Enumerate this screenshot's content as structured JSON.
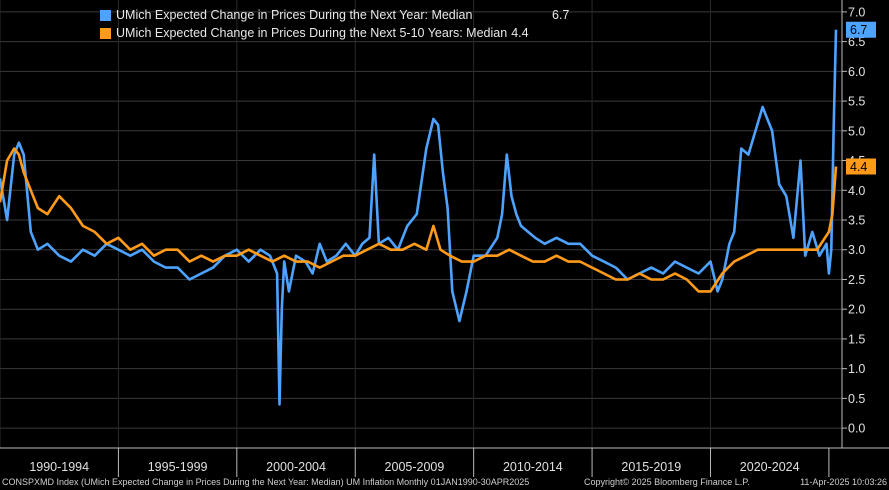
{
  "chart_data": {
    "type": "line",
    "x_range": [
      1990.0,
      2025.3
    ],
    "ylim": [
      -0.2,
      7.2
    ],
    "y_ticks": [
      "0.0",
      "0.5",
      "1.0",
      "1.5",
      "2.0",
      "2.5",
      "3.0",
      "3.5",
      "4.0",
      "4.5",
      "5.0",
      "5.5",
      "6.0",
      "6.5",
      "7.0"
    ],
    "y_tick_values": [
      0,
      0.5,
      1,
      1.5,
      2,
      2.5,
      3,
      3.5,
      4,
      4.5,
      5,
      5.5,
      6,
      6.5,
      7
    ],
    "x_periods": [
      "1990-1994",
      "1995-1999",
      "2000-2004",
      "2005-2009",
      "2010-2014",
      "2015-2019",
      "2020-2024"
    ],
    "grid": true,
    "legend_position": "top-left",
    "series": [
      {
        "name": "UMich Expected Change in Prices During the Next Year: Median",
        "last_value": "6.7",
        "color": "#4da3ff",
        "x": [
          1990.0,
          1990.3,
          1990.6,
          1990.8,
          1991.0,
          1991.3,
          1991.6,
          1992.0,
          1992.5,
          1993.0,
          1993.5,
          1994.0,
          1994.5,
          1995.0,
          1995.5,
          1996.0,
          1996.5,
          1997.0,
          1997.5,
          1998.0,
          1998.5,
          1999.0,
          1999.5,
          2000.0,
          2000.5,
          2001.0,
          2001.4,
          2001.7,
          2001.8,
          2001.9,
          2002.0,
          2002.2,
          2002.5,
          2002.9,
          2003.2,
          2003.5,
          2003.8,
          2004.2,
          2004.6,
          2005.0,
          2005.3,
          2005.6,
          2005.8,
          2006.0,
          2006.4,
          2006.8,
          2007.2,
          2007.6,
          2008.0,
          2008.3,
          2008.5,
          2008.7,
          2008.9,
          2009.1,
          2009.4,
          2009.7,
          2010.0,
          2010.5,
          2011.0,
          2011.2,
          2011.4,
          2011.6,
          2011.8,
          2012.0,
          2012.3,
          2012.6,
          2013.0,
          2013.5,
          2014.0,
          2014.5,
          2015.0,
          2015.5,
          2016.0,
          2016.5,
          2017.0,
          2017.5,
          2018.0,
          2018.5,
          2019.0,
          2019.5,
          2020.0,
          2020.3,
          2020.5,
          2020.8,
          2021.0,
          2021.3,
          2021.6,
          2021.9,
          2022.2,
          2022.4,
          2022.6,
          2022.9,
          2023.2,
          2023.5,
          2023.8,
          2024.0,
          2024.3,
          2024.6,
          2024.9,
          2025.0,
          2025.1,
          2025.2,
          2025.3
        ],
        "values": [
          4.2,
          3.5,
          4.6,
          4.8,
          4.6,
          3.3,
          3.0,
          3.1,
          2.9,
          2.8,
          3.0,
          2.9,
          3.1,
          3.0,
          2.9,
          3.0,
          2.8,
          2.7,
          2.7,
          2.5,
          2.6,
          2.7,
          2.9,
          3.0,
          2.8,
          3.0,
          2.9,
          2.6,
          0.4,
          2.0,
          2.8,
          2.3,
          2.9,
          2.8,
          2.6,
          3.1,
          2.8,
          2.9,
          3.1,
          2.9,
          3.1,
          3.2,
          4.6,
          3.1,
          3.2,
          3.0,
          3.4,
          3.6,
          4.7,
          5.2,
          5.1,
          4.3,
          3.7,
          2.3,
          1.8,
          2.3,
          2.9,
          2.9,
          3.2,
          3.6,
          4.6,
          3.9,
          3.6,
          3.4,
          3.3,
          3.2,
          3.1,
          3.2,
          3.1,
          3.1,
          2.9,
          2.8,
          2.7,
          2.5,
          2.6,
          2.7,
          2.6,
          2.8,
          2.7,
          2.6,
          2.8,
          2.3,
          2.5,
          3.1,
          3.3,
          4.7,
          4.6,
          5.0,
          5.4,
          5.2,
          5.0,
          4.1,
          3.9,
          3.2,
          4.5,
          2.9,
          3.3,
          2.9,
          3.1,
          2.6,
          3.0,
          5.0,
          6.7
        ]
      },
      {
        "name": "UMich Expected Change in Prices During the Next 5-10 Years: Median",
        "last_value": "4.4",
        "color": "#ff9a1a",
        "x": [
          1990.0,
          1990.3,
          1990.6,
          1990.8,
          1991.0,
          1991.3,
          1991.6,
          1992.0,
          1992.5,
          1993.0,
          1993.5,
          1994.0,
          1994.5,
          1995.0,
          1995.5,
          1996.0,
          1996.5,
          1997.0,
          1997.5,
          1998.0,
          1998.5,
          1999.0,
          1999.5,
          2000.0,
          2000.5,
          2001.0,
          2001.5,
          2002.0,
          2002.5,
          2003.0,
          2003.5,
          2004.0,
          2004.5,
          2005.0,
          2005.5,
          2006.0,
          2006.5,
          2007.0,
          2007.5,
          2008.0,
          2008.3,
          2008.6,
          2009.0,
          2009.5,
          2010.0,
          2010.5,
          2011.0,
          2011.5,
          2012.0,
          2012.5,
          2013.0,
          2013.5,
          2014.0,
          2014.5,
          2015.0,
          2015.5,
          2016.0,
          2016.5,
          2017.0,
          2017.5,
          2018.0,
          2018.5,
          2019.0,
          2019.5,
          2020.0,
          2020.5,
          2021.0,
          2021.5,
          2022.0,
          2022.5,
          2023.0,
          2023.5,
          2024.0,
          2024.5,
          2025.0,
          2025.15,
          2025.3
        ],
        "values": [
          3.8,
          4.5,
          4.7,
          4.6,
          4.3,
          4.0,
          3.7,
          3.6,
          3.9,
          3.7,
          3.4,
          3.3,
          3.1,
          3.2,
          3.0,
          3.1,
          2.9,
          3.0,
          3.0,
          2.8,
          2.9,
          2.8,
          2.9,
          2.9,
          3.0,
          2.9,
          2.8,
          2.9,
          2.8,
          2.8,
          2.7,
          2.8,
          2.9,
          2.9,
          3.0,
          3.1,
          3.0,
          3.0,
          3.1,
          3.0,
          3.4,
          3.0,
          2.9,
          2.8,
          2.8,
          2.9,
          2.9,
          3.0,
          2.9,
          2.8,
          2.8,
          2.9,
          2.8,
          2.8,
          2.7,
          2.6,
          2.5,
          2.5,
          2.6,
          2.5,
          2.5,
          2.6,
          2.5,
          2.3,
          2.3,
          2.6,
          2.8,
          2.9,
          3.0,
          3.0,
          3.0,
          3.0,
          3.0,
          3.0,
          3.3,
          3.6,
          4.4
        ]
      }
    ]
  },
  "footer": {
    "source_text": "CONSPXMD Index (UMich Expected Change in Prices During the Next Year: Median) UM Inflation  Monthly 01JAN1990-30APR2025",
    "copyright": "Copyright© 2025 Bloomberg Finance L.P.",
    "timestamp": "11-Apr-2025 10:03:26"
  }
}
